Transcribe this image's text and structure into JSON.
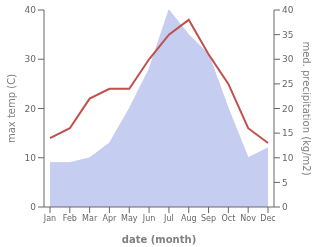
{
  "chart_data": {
    "type": "line",
    "categories": [
      "Jan",
      "Feb",
      "Mar",
      "Apr",
      "May",
      "Jun",
      "Jul",
      "Aug",
      "Sep",
      "Oct",
      "Nov",
      "Dec"
    ],
    "xlabel": "date (month)",
    "ylabel": "max temp (C)",
    "y2label": "med. precipitation (kg/m2)",
    "series": [
      {
        "type": "area",
        "color": "#c5cdf0",
        "axis": "y2",
        "values": [
          9,
          9,
          10,
          13,
          20,
          28,
          40,
          35,
          31,
          20,
          10,
          12
        ]
      },
      {
        "type": "line",
        "color": "#c0504d",
        "values": [
          14,
          16,
          22,
          24,
          24,
          30,
          35,
          38,
          31,
          25,
          16,
          13
        ]
      }
    ],
    "ylim": [
      0,
      40
    ],
    "yticks": [
      0,
      10,
      20,
      30,
      40
    ],
    "y2lim": [
      0,
      40
    ],
    "y2ticks": [
      0,
      5,
      10,
      15,
      20,
      25,
      30,
      35,
      40
    ],
    "grid": false
  }
}
